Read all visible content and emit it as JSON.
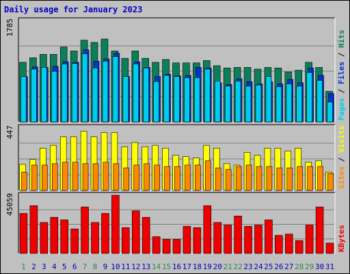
{
  "chart_data": {
    "type": "bar",
    "title": "Daily usage for January 2023",
    "categories": [
      "1",
      "2",
      "3",
      "4",
      "5",
      "6",
      "7",
      "8",
      "9",
      "10",
      "11",
      "12",
      "13",
      "14",
      "15",
      "16",
      "17",
      "18",
      "19",
      "20",
      "21",
      "22",
      "23",
      "24",
      "25",
      "26",
      "27",
      "28",
      "29",
      "30",
      "31"
    ],
    "weekend_days": [
      "1",
      "7",
      "8",
      "14",
      "15",
      "21",
      "22",
      "28",
      "29"
    ],
    "colors": {
      "hits": "#0b7f5a",
      "files": "#0033cc",
      "pages": "#00ccee",
      "visits": "#ffff00",
      "sites": "#ff8800",
      "kbytes": "#ee0000",
      "title": "#0000c0",
      "weekday_tick": "#0000c0",
      "weekend_tick": "#2a8a50"
    },
    "panels": [
      {
        "id": "traffic",
        "ymax": 1785,
        "ymax_label": "1785",
        "right_labels": [
          "Pages",
          "Files",
          "Hits"
        ],
        "series": [
          {
            "name": "Hits",
            "values": [
              1050,
              1130,
              1190,
              1190,
              1320,
              1250,
              1440,
              1400,
              1460,
              1250,
              1120,
              1250,
              1120,
              1050,
              1100,
              1040,
              1040,
              1040,
              1080,
              990,
              950,
              960,
              960,
              930,
              960,
              950,
              880,
              910,
              1050,
              960,
              540
            ]
          },
          {
            "name": "Files",
            "values": [
              800,
              970,
              960,
              980,
              1060,
              1050,
              1270,
              1070,
              1110,
              1210,
              800,
              1060,
              960,
              800,
              840,
              810,
              820,
              960,
              950,
              690,
              660,
              760,
              710,
              670,
              710,
              670,
              750,
              690,
              950,
              820,
              500
            ]
          },
          {
            "name": "Pages",
            "values": [
              800,
              930,
              960,
              890,
              1020,
              1030,
              1200,
              950,
              1070,
              1150,
              800,
              1020,
              950,
              710,
              820,
              800,
              780,
              780,
              930,
              720,
              630,
              720,
              630,
              650,
              800,
              620,
              670,
              630,
              870,
              730,
              350
            ]
          }
        ]
      },
      {
        "id": "visitors",
        "ymax": 447,
        "ymax_label": "447",
        "right_labels": [
          "Sites",
          "Visits"
        ],
        "series": [
          {
            "name": "Visits",
            "values": [
              185,
              220,
              300,
              320,
              380,
              380,
              420,
              380,
              410,
              410,
              310,
              340,
              310,
              320,
              300,
              250,
              240,
              230,
              320,
              300,
              190,
              180,
              270,
              250,
              300,
              300,
              280,
              300,
              200,
              210,
              130
            ]
          },
          {
            "name": "Sites",
            "values": [
              130,
              180,
              180,
              190,
              200,
              200,
              190,
              190,
              200,
              190,
              160,
              180,
              190,
              180,
              170,
              170,
              180,
              180,
              210,
              160,
              150,
              170,
              180,
              170,
              170,
              160,
              160,
              170,
              170,
              170,
              120
            ]
          }
        ]
      },
      {
        "id": "kbytes",
        "ymax": 45059,
        "ymax_label": "45059",
        "right_labels": [
          "KBytes"
        ],
        "series": [
          {
            "name": "KBytes",
            "values": [
              31000,
              37000,
              24000,
              28000,
              26000,
              19000,
              36000,
              24000,
              31000,
              45059,
              20000,
              33000,
              28000,
              13000,
              11000,
              11000,
              21000,
              20000,
              37000,
              24000,
              22000,
              29000,
              21000,
              22000,
              26000,
              14000,
              15000,
              10000,
              22000,
              36000,
              8000
            ]
          }
        ]
      }
    ]
  }
}
